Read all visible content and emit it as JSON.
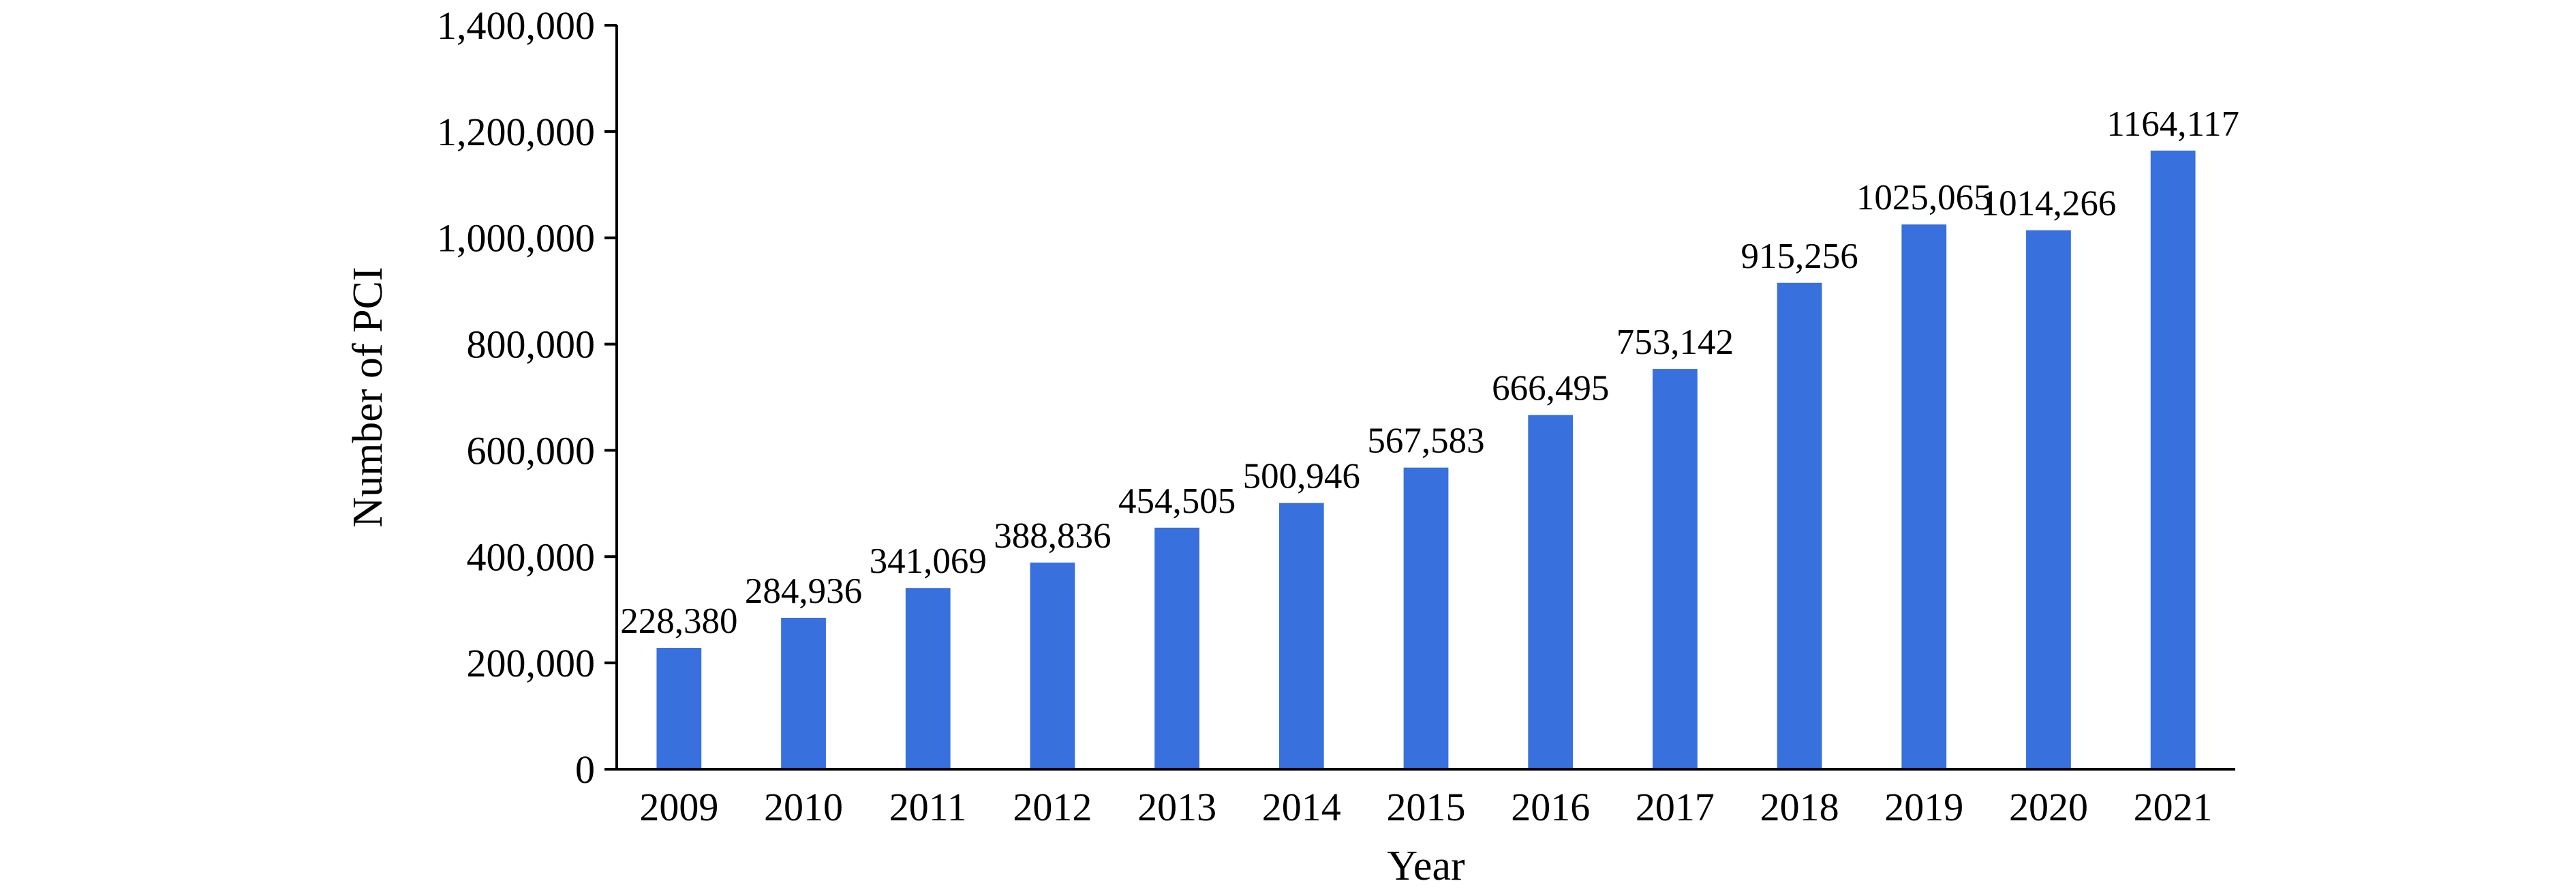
{
  "chart_data": {
    "type": "bar",
    "title": "",
    "xlabel": "Year",
    "ylabel": "Number of PCI",
    "ylim": [
      0,
      1400000
    ],
    "yticks": [
      0,
      200000,
      400000,
      600000,
      800000,
      1000000,
      1200000,
      1400000
    ],
    "ytick_labels": [
      "0",
      "200,000",
      "400,000",
      "600,000",
      "800,000",
      "1,000,000",
      "1,200,000",
      "1,400,000"
    ],
    "categories": [
      "2009",
      "2010",
      "2011",
      "2012",
      "2013",
      "2014",
      "2015",
      "2016",
      "2017",
      "2018",
      "2019",
      "2020",
      "2021"
    ],
    "values": [
      228380,
      284936,
      341069,
      388836,
      454505,
      500946,
      567583,
      666495,
      753142,
      915256,
      1025065,
      1014266,
      1164117
    ],
    "value_labels": [
      "228,380",
      "284,936",
      "341,069",
      "388,836",
      "454,505",
      "500,946",
      "567,583",
      "666,495",
      "753,142",
      "915,256",
      "1025,065",
      "1014,266",
      "1164,117"
    ],
    "bar_color": "#3870dd",
    "axis_color": "#000000",
    "grid": false,
    "legend": "none"
  }
}
